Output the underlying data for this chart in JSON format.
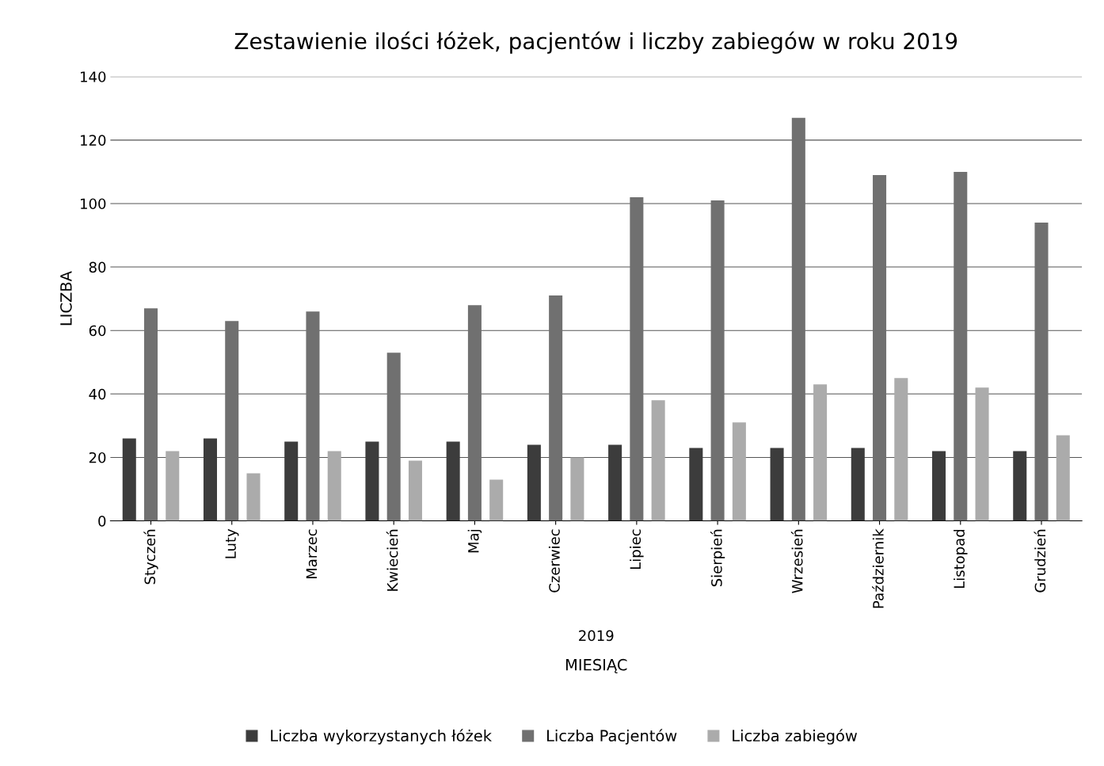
{
  "chart_data": {
    "type": "bar",
    "title": "Zestawienie ilości łóżek, pacjentów i liczby zabiegów w roku 2019",
    "xlabel": "MIESIĄC",
    "ylabel": "LICZBA",
    "annotations": [
      "2019"
    ],
    "categories": [
      "Styczeń",
      "Luty",
      "Marzec",
      "Kwiecień",
      "Maj",
      "Czerwiec",
      "Lipiec",
      "Sierpień",
      "Wrzesień",
      "Październik",
      "Listopad",
      "Grudzień"
    ],
    "series": [
      {
        "name": "Liczba wykorzystanych łóżek",
        "color": "#3c3c3c",
        "values": [
          26,
          26,
          25,
          25,
          25,
          24,
          24,
          23,
          23,
          23,
          22,
          22
        ]
      },
      {
        "name": "Liczba Pacjentów",
        "color": "#707070",
        "values": [
          67,
          63,
          66,
          53,
          68,
          71,
          102,
          101,
          127,
          109,
          110,
          94
        ]
      },
      {
        "name": "Liczba zabiegów",
        "color": "#ababab",
        "values": [
          22,
          15,
          22,
          19,
          13,
          20,
          38,
          31,
          43,
          45,
          42,
          27
        ]
      }
    ],
    "ylim": [
      0,
      140
    ],
    "yticks": [
      0,
      20,
      40,
      60,
      80,
      100,
      120,
      140
    ],
    "grid": "y",
    "legend": "bottom"
  }
}
